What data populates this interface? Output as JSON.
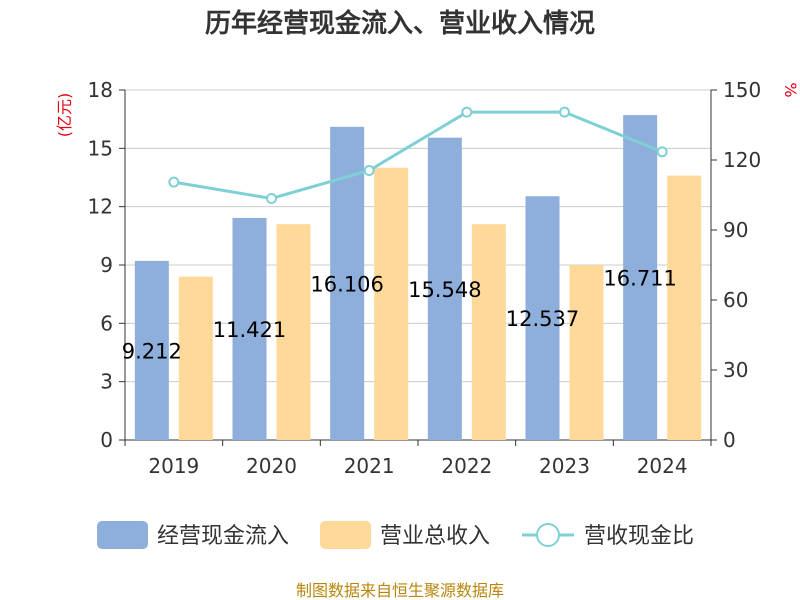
{
  "chart_data": {
    "type": "bar",
    "title": "历年经营现金流入、营业收入情况",
    "categories": [
      "2019",
      "2020",
      "2021",
      "2022",
      "2023",
      "2024"
    ],
    "series": [
      {
        "name": "经营现金流入",
        "type": "bar",
        "axis": "left",
        "color": "#8eaedb",
        "values": [
          9.212,
          11.421,
          16.106,
          15.548,
          12.537,
          16.711
        ],
        "labels": [
          "9.212",
          "11.421",
          "16.106",
          "15.548",
          "12.537",
          "16.711"
        ]
      },
      {
        "name": "营业总收入",
        "type": "bar",
        "axis": "left",
        "color": "#ffd99a",
        "values": [
          8.4,
          11.1,
          14.0,
          11.1,
          9.0,
          13.6
        ]
      },
      {
        "name": "营收现金比",
        "type": "line",
        "axis": "right",
        "color": "#7fd0d4",
        "values": [
          110.5,
          103.5,
          115.5,
          140.5,
          140.5,
          123.5
        ]
      }
    ],
    "y_left": {
      "unit": "(亿元)",
      "ticks": [
        0,
        3,
        6,
        9,
        12,
        15,
        18
      ],
      "ylim": [
        0,
        18
      ]
    },
    "y_right": {
      "unit": "%",
      "ticks": [
        0,
        30,
        60,
        90,
        120,
        150
      ],
      "ylim": [
        0,
        150
      ]
    },
    "grid": true,
    "legend_position": "bottom"
  },
  "source": "制图数据来自恒生聚源数据库"
}
